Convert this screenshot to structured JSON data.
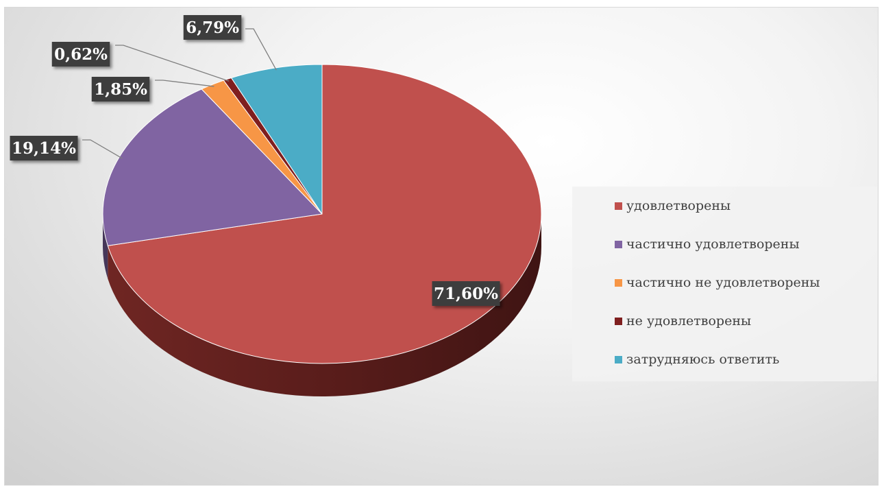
{
  "chart_data": {
    "type": "pie",
    "title": "",
    "three_d": true,
    "legend_position": "right",
    "categories": [
      "удовлетворены",
      "частично удовлетворены",
      "частично не удовлетворены",
      "не удовлетворены",
      "затрудняюсь ответить"
    ],
    "values": [
      71.6,
      19.14,
      1.85,
      0.62,
      6.79
    ],
    "value_labels": [
      "71,60%",
      "19,14%",
      "1,85%",
      "0,62%",
      "6,79%"
    ],
    "colors": [
      "#C0504D",
      "#8064A2",
      "#F79646",
      "#7F1F1F",
      "#4BACC6"
    ]
  }
}
